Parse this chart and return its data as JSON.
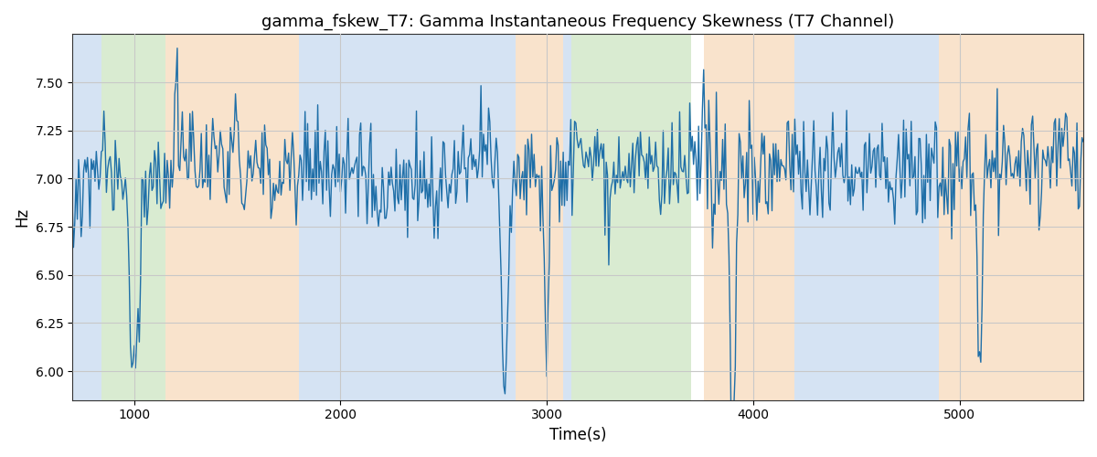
{
  "title": "gamma_fskew_T7: Gamma Instantaneous Frequency Skewness (T7 Channel)",
  "xlabel": "Time(s)",
  "ylabel": "Hz",
  "line_color": "#1f6fa8",
  "line_width": 1.0,
  "xlim": [
    700,
    5600
  ],
  "ylim": [
    5.85,
    7.75
  ],
  "yticks": [
    6.0,
    6.25,
    6.5,
    6.75,
    7.0,
    7.25,
    7.5
  ],
  "figsize": [
    12,
    5
  ],
  "dpi": 100,
  "bg_bands": [
    {
      "xmin": 700,
      "xmax": 840,
      "color": "#adc8e8",
      "alpha": 0.5
    },
    {
      "xmin": 840,
      "xmax": 1150,
      "color": "#b5d9a5",
      "alpha": 0.5
    },
    {
      "xmin": 1150,
      "xmax": 1800,
      "color": "#f5c99a",
      "alpha": 0.5
    },
    {
      "xmin": 1800,
      "xmax": 2850,
      "color": "#adc8e8",
      "alpha": 0.5
    },
    {
      "xmin": 2850,
      "xmax": 3080,
      "color": "#f5c99a",
      "alpha": 0.5
    },
    {
      "xmin": 3080,
      "xmax": 3120,
      "color": "#adc8e8",
      "alpha": 0.5
    },
    {
      "xmin": 3120,
      "xmax": 3700,
      "color": "#b5d9a5",
      "alpha": 0.5
    },
    {
      "xmin": 3700,
      "xmax": 3760,
      "color": "#ffffff",
      "alpha": 1.0
    },
    {
      "xmin": 3760,
      "xmax": 4200,
      "color": "#f5c99a",
      "alpha": 0.5
    },
    {
      "xmin": 4200,
      "xmax": 4900,
      "color": "#adc8e8",
      "alpha": 0.5
    },
    {
      "xmin": 4900,
      "xmax": 5600,
      "color": "#f5c99a",
      "alpha": 0.5
    }
  ],
  "seed": 12345,
  "n_points": 800,
  "x_start": 700,
  "x_end": 5600,
  "base_freq": 7.05,
  "noise_std": 0.14,
  "walk_std": 0.018
}
